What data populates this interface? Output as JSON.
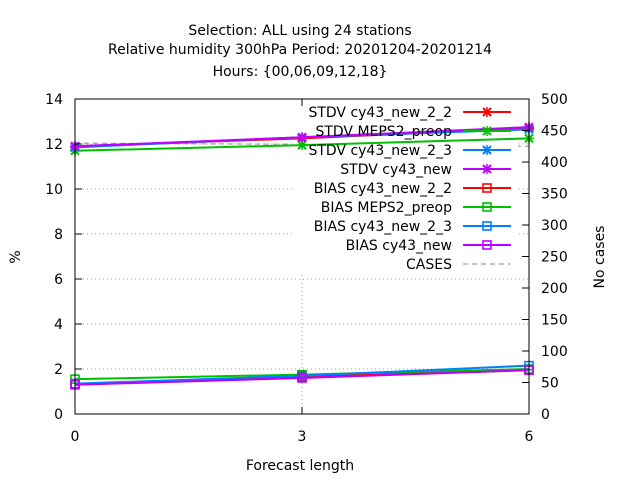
{
  "chart_data": {
    "type": "line",
    "title_lines": [
      "Selection: ALL using    24 stations",
      "Relative humidity 300hPa   Period: 20201204-20201214",
      "Hours: {00,06,09,12,18}"
    ],
    "xlabel": "Forecast length",
    "ylabel": "%",
    "y2label": "No cases",
    "xlim": [
      0,
      6
    ],
    "ylim": [
      0,
      14
    ],
    "y2lim": [
      0,
      500
    ],
    "xticks": [
      0,
      3,
      6
    ],
    "yticks": [
      0,
      2,
      4,
      6,
      8,
      10,
      12,
      14
    ],
    "y2ticks": [
      0,
      50,
      100,
      150,
      200,
      250,
      300,
      350,
      400,
      450,
      500
    ],
    "grid": true,
    "legend_position": "top-right",
    "x": [
      0,
      3,
      6
    ],
    "series": [
      {
        "name": "STDV cy43_new_2_2",
        "color": "#ff0000",
        "marker": "x",
        "values": [
          11.9,
          12.25,
          12.7
        ]
      },
      {
        "name": "STDV MEPS2_preop",
        "color": "#00c000",
        "marker": "x",
        "values": [
          11.7,
          11.95,
          12.25
        ]
      },
      {
        "name": "STDV cy43_new_2_3",
        "color": "#0080ff",
        "marker": "x",
        "values": [
          11.85,
          12.3,
          12.65
        ]
      },
      {
        "name": "STDV cy43_new",
        "color": "#c000ff",
        "marker": "x",
        "values": [
          11.9,
          12.3,
          12.75
        ]
      },
      {
        "name": "BIAS cy43_new_2_2",
        "color": "#ff0000",
        "marker": "square",
        "values": [
          1.3,
          1.65,
          1.95
        ]
      },
      {
        "name": "BIAS MEPS2_preop",
        "color": "#00c000",
        "marker": "square",
        "values": [
          1.55,
          1.75,
          2.0
        ]
      },
      {
        "name": "BIAS cy43_new_2_3",
        "color": "#0080ff",
        "marker": "square",
        "values": [
          1.35,
          1.7,
          2.15
        ]
      },
      {
        "name": "BIAS cy43_new",
        "color": "#c000ff",
        "marker": "square",
        "values": [
          1.3,
          1.6,
          1.95
        ]
      },
      {
        "name": "CASES",
        "color": "#a0a0a0",
        "marker": "none",
        "dashed": true,
        "axis": "y2",
        "values": [
          430,
          428,
          425
        ]
      }
    ]
  }
}
